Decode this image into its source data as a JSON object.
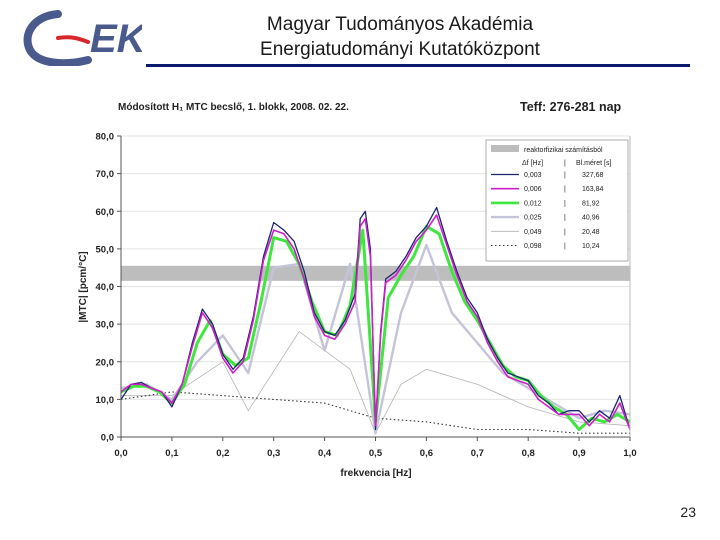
{
  "header": {
    "title_line1": "Magyar Tudományos Akadémia",
    "title_line2": "Energiatudományi Kutatóközpont",
    "logo_text": "EK"
  },
  "slide_number": "23",
  "colors": {
    "header_rule": "#0a1a6e",
    "logo_blue": "#4a5a8c",
    "logo_red": "#d9262c",
    "band": "#bdbdbd",
    "s_0003": "#1b2470",
    "s_0006": "#cc1fc8",
    "s_0012": "#3ee63e",
    "s_0025": "#c4c4d8",
    "s_0049": "#b4b4b4",
    "s_0098": "#333333"
  },
  "chart_data": {
    "type": "line",
    "title": "Módosított H₁ MTC becslő,  1. blokk, 2008. 02. 22.",
    "title_right": "Teff: 276-281 nap",
    "xlabel": "frekvencia [Hz]",
    "ylabel": "|MTC| [pcm/°C]",
    "xlim": [
      0,
      1
    ],
    "ylim": [
      0,
      80
    ],
    "x_ticks": [
      "0,0",
      "0,1",
      "0,2",
      "0,3",
      "0,4",
      "0,5",
      "0,6",
      "0,7",
      "0,8",
      "0,9",
      "1,0"
    ],
    "y_ticks": [
      "0,0",
      "10,0",
      "20,0",
      "30,0",
      "40,0",
      "50,0",
      "60,0",
      "70,0",
      "80,0"
    ],
    "grid": "horizontal",
    "legend_position": "top-right",
    "band": {
      "label": "reaktorfizikai számításból",
      "y": [
        41.5,
        45.5
      ]
    },
    "legend_header": {
      "df": "Δf  [Hz]",
      "sep": "|",
      "block": "Bl.méret [s]"
    },
    "series": [
      {
        "df": "0,003",
        "block": "327,68",
        "style": "dark-blue",
        "x": [
          0,
          0.02,
          0.04,
          0.06,
          0.08,
          0.1,
          0.12,
          0.14,
          0.16,
          0.18,
          0.2,
          0.22,
          0.24,
          0.26,
          0.28,
          0.3,
          0.32,
          0.34,
          0.36,
          0.38,
          0.4,
          0.42,
          0.44,
          0.46,
          0.47,
          0.48,
          0.49,
          0.5,
          0.51,
          0.52,
          0.54,
          0.56,
          0.58,
          0.6,
          0.62,
          0.64,
          0.66,
          0.68,
          0.7,
          0.72,
          0.74,
          0.76,
          0.78,
          0.8,
          0.82,
          0.84,
          0.86,
          0.88,
          0.9,
          0.92,
          0.94,
          0.96,
          0.98,
          1.0
        ],
        "y": [
          10,
          14,
          14.5,
          13,
          12,
          8,
          14,
          25,
          34,
          30,
          22,
          18,
          21,
          32,
          48,
          57,
          55,
          52,
          44,
          33,
          28,
          27,
          31,
          38,
          58,
          60,
          50,
          2,
          28,
          42,
          44,
          48,
          53,
          56,
          61,
          52,
          44,
          37,
          33,
          26,
          21,
          17,
          16,
          15,
          11,
          9,
          6,
          7,
          7,
          4,
          7,
          5,
          11,
          2
        ]
      },
      {
        "df": "0,006",
        "block": "163,84",
        "style": "magenta",
        "x": [
          0,
          0.02,
          0.04,
          0.06,
          0.08,
          0.1,
          0.12,
          0.14,
          0.16,
          0.18,
          0.2,
          0.22,
          0.24,
          0.26,
          0.28,
          0.3,
          0.32,
          0.34,
          0.36,
          0.38,
          0.4,
          0.42,
          0.44,
          0.46,
          0.47,
          0.48,
          0.49,
          0.5,
          0.51,
          0.52,
          0.54,
          0.56,
          0.58,
          0.6,
          0.62,
          0.64,
          0.66,
          0.68,
          0.7,
          0.72,
          0.74,
          0.76,
          0.78,
          0.8,
          0.82,
          0.84,
          0.86,
          0.88,
          0.9,
          0.92,
          0.94,
          0.96,
          0.98,
          1.0
        ],
        "y": [
          12,
          14,
          14,
          13,
          12,
          9,
          14,
          24,
          33,
          29,
          21,
          17,
          20,
          31,
          47,
          55,
          54,
          50,
          42,
          32,
          27,
          26,
          30,
          36,
          56,
          58,
          48,
          3,
          27,
          41,
          43,
          47,
          52,
          55,
          59,
          51,
          43,
          36,
          32,
          25,
          20,
          16,
          15,
          14,
          10,
          8,
          6,
          6,
          6,
          3,
          6,
          4,
          9,
          2
        ]
      },
      {
        "df": "0,012",
        "block": "81,92",
        "style": "green",
        "x": [
          0,
          0.025,
          0.05,
          0.075,
          0.1,
          0.125,
          0.15,
          0.175,
          0.2,
          0.225,
          0.25,
          0.275,
          0.3,
          0.325,
          0.35,
          0.375,
          0.4,
          0.425,
          0.45,
          0.475,
          0.5,
          0.525,
          0.55,
          0.575,
          0.6,
          0.625,
          0.65,
          0.675,
          0.7,
          0.725,
          0.75,
          0.775,
          0.8,
          0.825,
          0.85,
          0.875,
          0.9,
          0.925,
          0.95,
          0.975,
          1.0
        ],
        "y": [
          12,
          13.5,
          13.5,
          12,
          9,
          14,
          25,
          31,
          22,
          19,
          21,
          36,
          53,
          52,
          46,
          36,
          28,
          27,
          35,
          55,
          4,
          37,
          43,
          48,
          56,
          54,
          44,
          36,
          31,
          25,
          19,
          16,
          15,
          11,
          8,
          6,
          2,
          5,
          4,
          6,
          4
        ]
      },
      {
        "df": "0,025",
        "block": "40,96",
        "style": "light-lavender",
        "x": [
          0,
          0.05,
          0.1,
          0.15,
          0.2,
          0.25,
          0.3,
          0.35,
          0.4,
          0.45,
          0.5,
          0.55,
          0.6,
          0.65,
          0.7,
          0.75,
          0.8,
          0.85,
          0.9,
          0.95,
          1.0
        ],
        "y": [
          13,
          14,
          10,
          20,
          27,
          17,
          45,
          46,
          23,
          46,
          1,
          33,
          51,
          33,
          25,
          17,
          13,
          9,
          5,
          7,
          6
        ]
      },
      {
        "df": "0,049",
        "block": "20,48",
        "style": "light-gray",
        "x": [
          0,
          0.1,
          0.2,
          0.25,
          0.35,
          0.45,
          0.5,
          0.55,
          0.6,
          0.7,
          0.8,
          0.9,
          1.0
        ],
        "y": [
          11,
          11,
          20,
          7,
          28,
          18,
          1,
          14,
          18,
          14,
          8,
          4,
          3
        ]
      },
      {
        "df": "0,098",
        "block": "10,24",
        "style": "dotted-black",
        "x": [
          0,
          0.1,
          0.2,
          0.3,
          0.4,
          0.5,
          0.6,
          0.7,
          0.8,
          0.9,
          1.0
        ],
        "y": [
          10,
          12,
          11,
          10,
          9,
          5,
          4,
          2,
          2,
          1,
          1
        ]
      }
    ]
  }
}
